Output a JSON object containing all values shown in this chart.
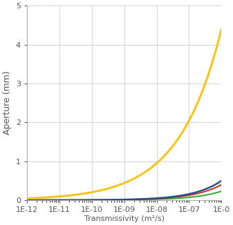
{
  "ylabel": "Aperture (mm)",
  "xlabel_partial": "Transmissivity (m",
  "xlim_log": [
    -12,
    -6
  ],
  "ylim": [
    0,
    5
  ],
  "yticks": [
    0,
    1,
    2,
    3,
    4,
    5
  ],
  "xtick_labels": [
    "1E-12",
    "1E-11",
    "1E-10",
    "1E-09",
    "1E-08",
    "1E-07",
    "1E-0"
  ],
  "background_color": "#ffffff",
  "grid_color": "#cccccc",
  "yellow": {
    "color": "#f5c518",
    "A": 440,
    "n": 0.3333,
    "lw": 2.2
  },
  "blue": {
    "color": "#2b4b8c",
    "A": 500,
    "n": 0.5,
    "lw": 1.8
  },
  "red": {
    "color": "#c0392b",
    "A": 400,
    "n": 0.5,
    "lw": 1.5
  },
  "green": {
    "color": "#3aaa35",
    "A": 230,
    "n": 0.5,
    "lw": 1.5
  },
  "ylabel_fontsize": 9,
  "xlabel_fontsize": 8,
  "tick_fontsize": 8,
  "spine_color": "#aaaaaa"
}
